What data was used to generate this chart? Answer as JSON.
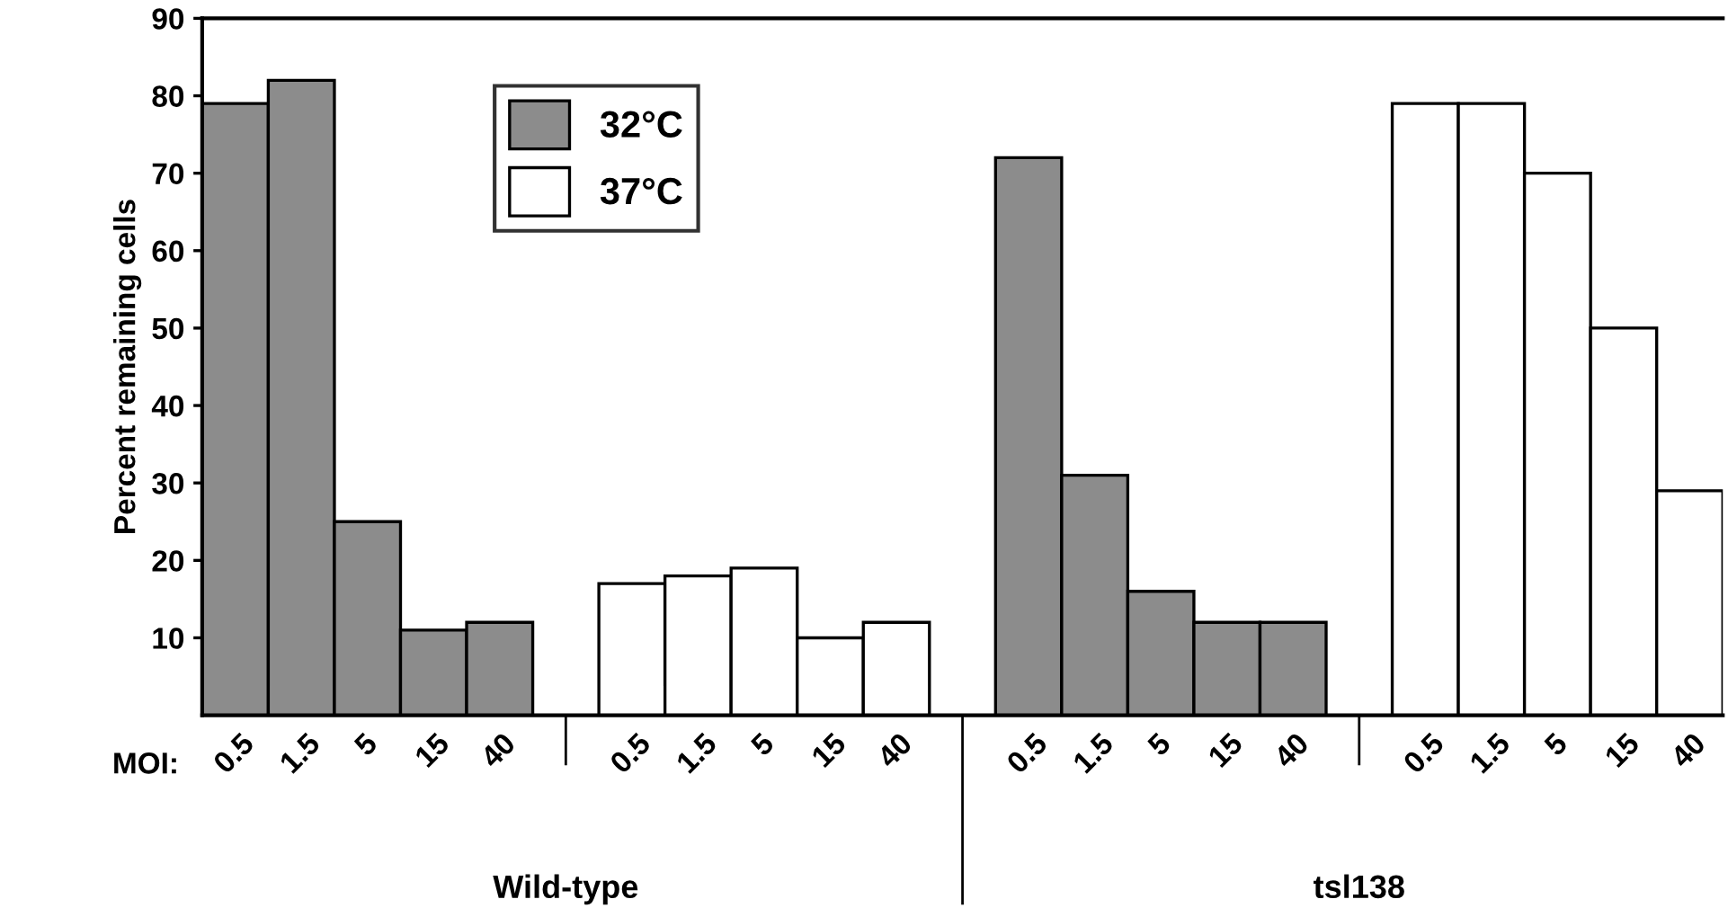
{
  "chart_data": {
    "type": "bar",
    "ylabel": "Percent remaining cells",
    "categories": [
      "0.5",
      "1.5",
      "5",
      "15",
      "40",
      null,
      "0.5",
      "1.5",
      "5",
      "15",
      "40",
      null,
      "0.5",
      "1.5",
      "5",
      "15",
      "40",
      null,
      "0.5",
      "1.5",
      "5",
      "15",
      "40"
    ],
    "series": [
      {
        "name": "32°C",
        "color": "#8c8c8c",
        "values": [
          79,
          82,
          25,
          11,
          12,
          null,
          null,
          null,
          null,
          null,
          null,
          null,
          72,
          31,
          16,
          12,
          12,
          null,
          null,
          null,
          null,
          null,
          null
        ]
      },
      {
        "name": "37°C",
        "color": "#ffffff",
        "values": [
          null,
          null,
          null,
          null,
          null,
          null,
          17,
          18,
          19,
          10,
          12,
          null,
          null,
          null,
          null,
          null,
          null,
          null,
          79,
          79,
          70,
          50,
          29
        ]
      }
    ],
    "ylim": [
      0,
      90
    ],
    "yticks": [
      10,
      20,
      30,
      40,
      50,
      60,
      70,
      80,
      90
    ],
    "grid": false,
    "legend": "top left",
    "annotations": [
      "MOI:",
      "Wild-type",
      "tsl138"
    ]
  }
}
